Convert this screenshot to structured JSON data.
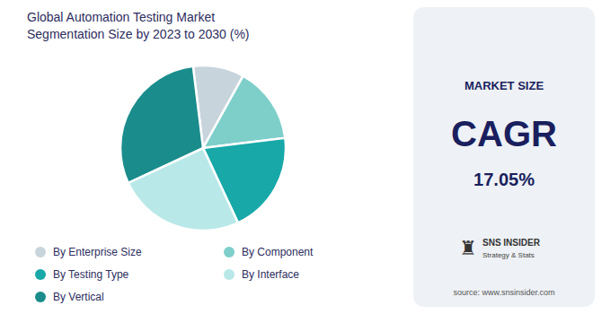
{
  "chart_data": {
    "type": "pie",
    "title": "Global Automation Testing Market\nSegmentation Size by 2023 to 2030 (%)",
    "categories": [
      "By Enterprise Size",
      "By Component",
      "By Testing Type",
      "By Interface",
      "By Vertical"
    ],
    "values": [
      10,
      15,
      20,
      25,
      30
    ],
    "colors": [
      "#c8d4dc",
      "#7ececa",
      "#18a8a8",
      "#b8e8e8",
      "#1a8c8c"
    ],
    "legend": "bottom",
    "annotations": [
      "MARKET SIZE",
      "CAGR",
      "17.05%",
      "♜",
      "SNS INSIDER",
      "Strategy & Stats",
      "source: www.snsinsider.com"
    ]
  }
}
